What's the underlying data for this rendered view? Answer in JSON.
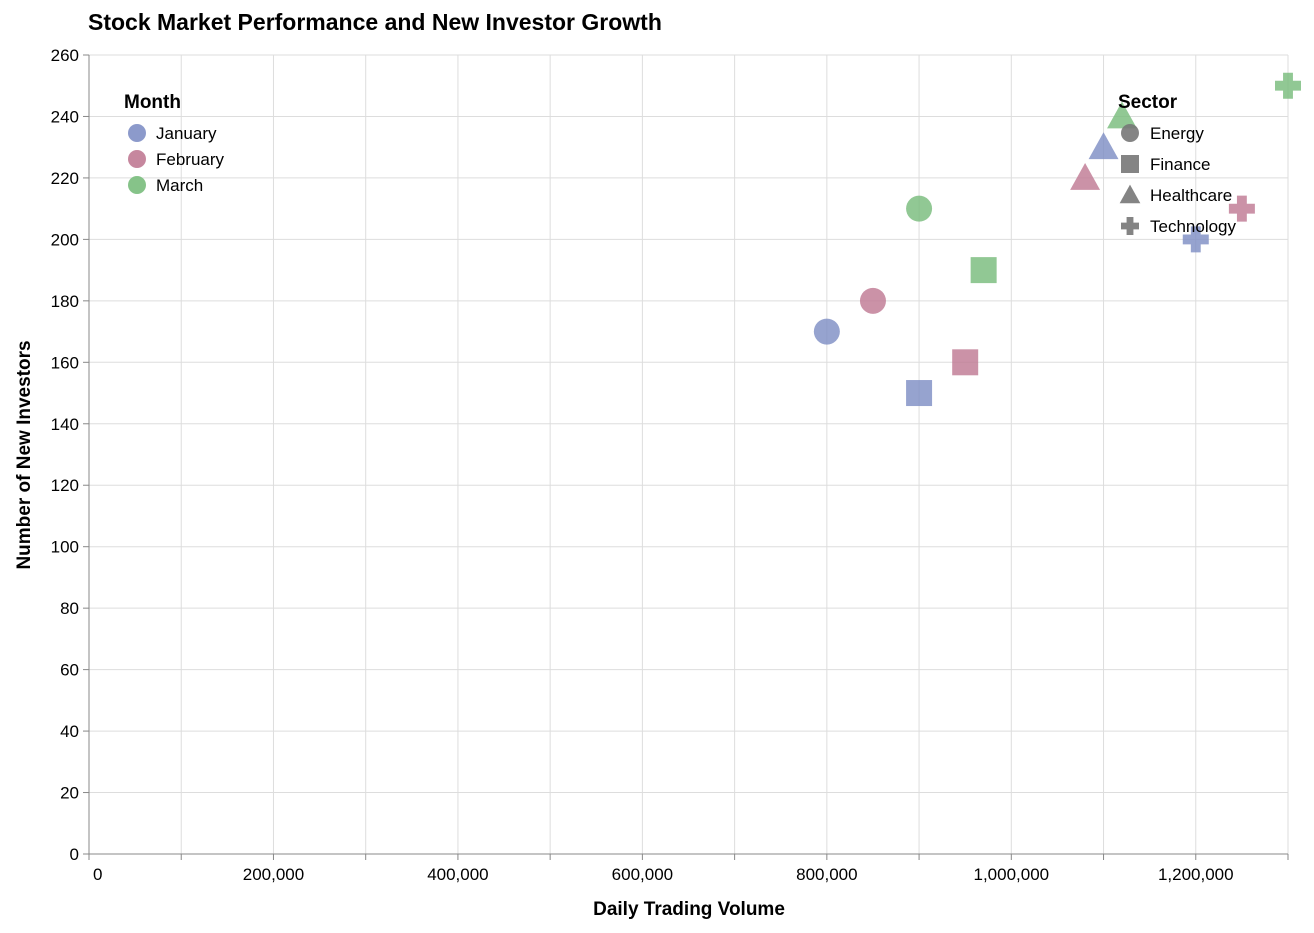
{
  "chart_data": {
    "type": "scatter",
    "title": "Stock Market Performance and New Investor Growth",
    "xlabel": "Daily Trading Volume",
    "ylabel": "Number of New Investors",
    "xlim": [
      0,
      1300000
    ],
    "ylim": [
      0,
      260
    ],
    "x_ticks": [
      0,
      200000,
      400000,
      600000,
      800000,
      1000000,
      1200000
    ],
    "x_tick_labels": [
      "0",
      "200,000",
      "400,000",
      "600,000",
      "800,000",
      "1,000,000",
      "1,200,000"
    ],
    "x_grid_step": 100000,
    "y_ticks": [
      0,
      20,
      40,
      60,
      80,
      100,
      120,
      140,
      160,
      180,
      200,
      220,
      240,
      260
    ],
    "y_tick_labels": [
      "0",
      "20",
      "40",
      "60",
      "80",
      "100",
      "120",
      "140",
      "160",
      "180",
      "200",
      "220",
      "240",
      "260"
    ],
    "grid": true,
    "color_legend": {
      "title": "Month",
      "placement": "top-left",
      "entries": [
        {
          "label": "January",
          "color": "#7f8fc5"
        },
        {
          "label": "February",
          "color": "#c07a94"
        },
        {
          "label": "March",
          "color": "#79bc7c"
        }
      ]
    },
    "shape_legend": {
      "title": "Sector",
      "placement": "top-right",
      "entries": [
        {
          "label": "Energy",
          "shape": "circle"
        },
        {
          "label": "Finance",
          "shape": "square"
        },
        {
          "label": "Healthcare",
          "shape": "triangle"
        },
        {
          "label": "Technology",
          "shape": "cross"
        }
      ]
    },
    "points": [
      {
        "month": "January",
        "sector": "Technology",
        "x": 1200000,
        "y": 200
      },
      {
        "month": "January",
        "sector": "Healthcare",
        "x": 1100000,
        "y": 230
      },
      {
        "month": "January",
        "sector": "Finance",
        "x": 900000,
        "y": 150
      },
      {
        "month": "January",
        "sector": "Energy",
        "x": 800000,
        "y": 170
      },
      {
        "month": "February",
        "sector": "Technology",
        "x": 1250000,
        "y": 210
      },
      {
        "month": "February",
        "sector": "Healthcare",
        "x": 1080000,
        "y": 220
      },
      {
        "month": "February",
        "sector": "Finance",
        "x": 950000,
        "y": 160
      },
      {
        "month": "February",
        "sector": "Energy",
        "x": 850000,
        "y": 180
      },
      {
        "month": "March",
        "sector": "Technology",
        "x": 1300000,
        "y": 250
      },
      {
        "month": "March",
        "sector": "Healthcare",
        "x": 1120000,
        "y": 240
      },
      {
        "month": "March",
        "sector": "Finance",
        "x": 970000,
        "y": 190
      },
      {
        "month": "March",
        "sector": "Energy",
        "x": 900000,
        "y": 210
      }
    ]
  }
}
